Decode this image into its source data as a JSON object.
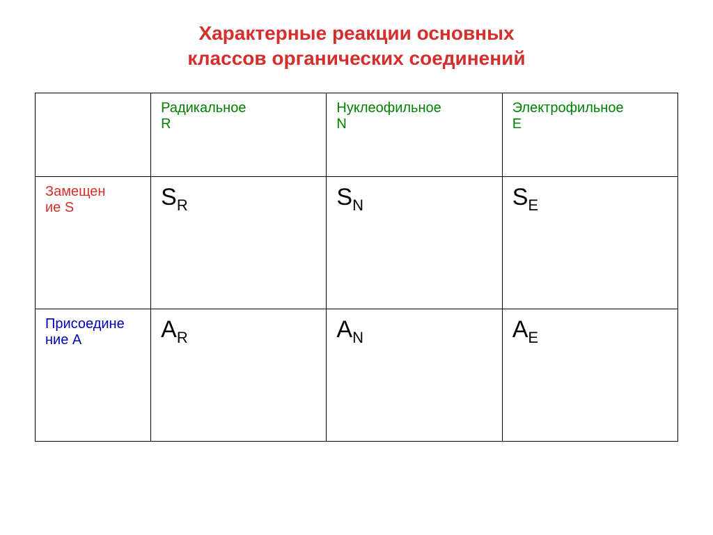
{
  "title": {
    "line1": "Характерные реакции основных",
    "line2": "классов органических соединений",
    "color": "#d62d2d",
    "fontsize": 28
  },
  "table": {
    "border_color": "#000000",
    "background_color": "#ffffff",
    "header": {
      "color": "#008000",
      "fontsize": 20,
      "cells": [
        {
          "text": ""
        },
        {
          "line1": "Радикальное",
          "line2": "R"
        },
        {
          "line1": "Нуклеофильное",
          "line2": "N"
        },
        {
          "line1": "Электрофильное",
          "line2": "E"
        }
      ]
    },
    "rows": [
      {
        "label": {
          "line1": "Замещен",
          "line2": "ие S",
          "color": "#d62d2d"
        },
        "cells": [
          {
            "main": "S",
            "sub": "R"
          },
          {
            "main": "S",
            "sub": "N"
          },
          {
            "main": "S",
            "sub": "E"
          }
        ]
      },
      {
        "label": {
          "line1": "Присоедине",
          "line2": "ние A",
          "color": "#0000b3"
        },
        "cells": [
          {
            "main": "A",
            "sub": "R"
          },
          {
            "main": "A",
            "sub": "N"
          },
          {
            "main": "A",
            "sub": "E"
          }
        ]
      }
    ],
    "cell_fontsize": 34,
    "sub_fontsize": 22,
    "header_row_height": 120,
    "data_row_height": 190,
    "col_widths": {
      "label": 18,
      "data": 27.33
    }
  }
}
